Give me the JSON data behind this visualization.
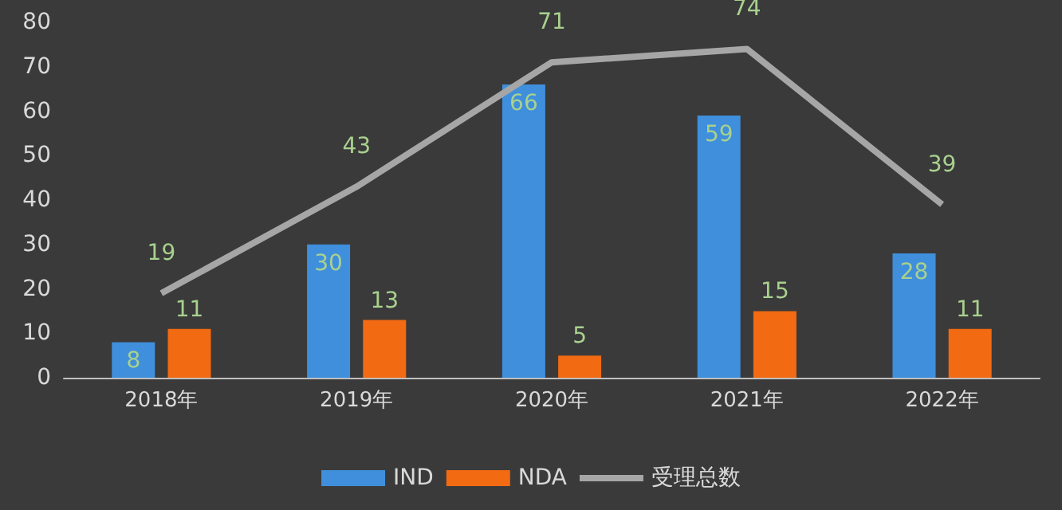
{
  "chart_data": {
    "type": "bar",
    "categories": [
      "2018年",
      "2019年",
      "2020年",
      "2021年",
      "2022年"
    ],
    "series": [
      {
        "name": "IND",
        "color": "#3f8fdc",
        "values": [
          8,
          30,
          66,
          59,
          28
        ]
      },
      {
        "name": "NDA",
        "color": "#f26a12",
        "values": [
          11,
          13,
          5,
          15,
          11
        ]
      },
      {
        "name": "受理总数",
        "type": "line",
        "color": "#a6a6a6",
        "values": [
          19,
          43,
          71,
          74,
          39
        ]
      }
    ],
    "ylim": [
      0,
      80
    ],
    "yticks": [
      0,
      10,
      20,
      30,
      40,
      50,
      60,
      70,
      80
    ],
    "grid": false,
    "legend": "bottom",
    "data_labels": true,
    "marker": "none"
  }
}
